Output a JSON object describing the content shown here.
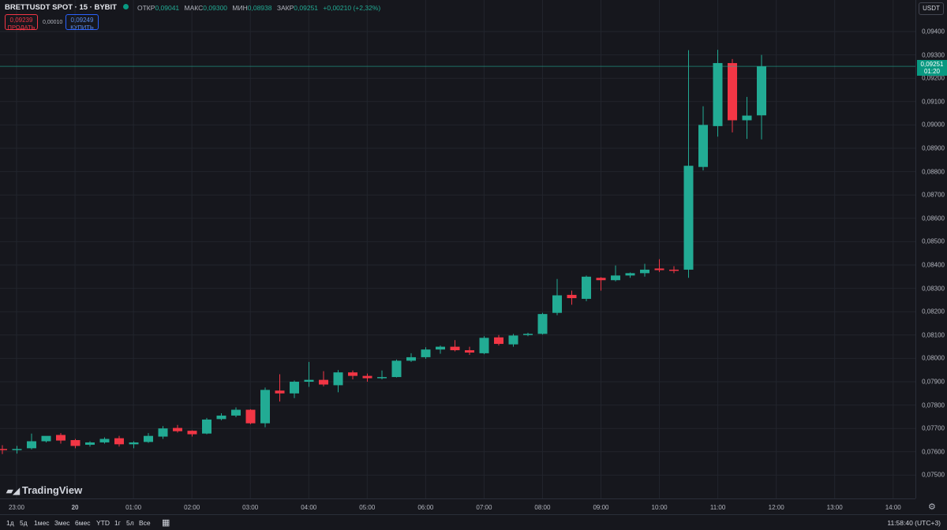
{
  "header": {
    "title": "BRETTUSDT SPOT · 15 · BYBIT",
    "ohlc": [
      {
        "label": "ОТКР",
        "value": "0,09041"
      },
      {
        "label": "МАКС",
        "value": "0,09300"
      },
      {
        "label": "МИН",
        "value": "0,08938"
      },
      {
        "label": "ЗАКР",
        "value": "0,09251"
      },
      {
        "label": "",
        "value": "+0,00210 (+2,32%)"
      }
    ]
  },
  "trade": {
    "sell_price": "0,09239",
    "sell_label": "ПРОДАТЬ",
    "spread": "0,00010",
    "buy_price": "0,09249",
    "buy_label": "КУПИТЬ"
  },
  "currency_button": "USDT",
  "current_price": {
    "price": "0,09251",
    "countdown": "01:20"
  },
  "branding": "TradingView",
  "bottom_bar": {
    "ranges": [
      "1д",
      "5д",
      "1мес",
      "3мес",
      "6мес",
      "YTD",
      "1г",
      "5л",
      "Все"
    ],
    "calendar_icon": "calendar-icon",
    "clock": "11:58:40 (UTC+3)"
  },
  "colors": {
    "up": "#22ab94",
    "down": "#f23645",
    "background": "#16171d",
    "grid": "#22252d"
  },
  "chart_data": {
    "type": "candlestick",
    "y_ticks": [
      "0,09400",
      "0,09300",
      "0,09200",
      "0,09100",
      "0,09000",
      "0,08900",
      "0,08800",
      "0,08700",
      "0,08600",
      "0,08500",
      "0,08400",
      "0,08300",
      "0,08200",
      "0,08100",
      "0,08000",
      "0,07900",
      "0,07800",
      "0,07700",
      "0,07600",
      "0,07500"
    ],
    "x_ticks": [
      "23:00",
      "20",
      "01:00",
      "02:00",
      "03:00",
      "04:00",
      "05:00",
      "06:00",
      "07:00",
      "08:00",
      "09:00",
      "10:00",
      "11:00",
      "12:00",
      "13:00",
      "14:00"
    ],
    "ylim": [
      0.0747,
      0.0948
    ],
    "grid": true,
    "candles": [
      {
        "o": 0.07612,
        "h": 0.07628,
        "l": 0.0759,
        "c": 0.07608
      },
      {
        "o": 0.0761,
        "h": 0.07625,
        "l": 0.07592,
        "c": 0.07612
      },
      {
        "o": 0.07615,
        "h": 0.07678,
        "l": 0.0761,
        "c": 0.07645
      },
      {
        "o": 0.07645,
        "h": 0.07665,
        "l": 0.0764,
        "c": 0.07668
      },
      {
        "o": 0.07672,
        "h": 0.0768,
        "l": 0.07635,
        "c": 0.07648
      },
      {
        "o": 0.0765,
        "h": 0.07655,
        "l": 0.07615,
        "c": 0.07625
      },
      {
        "o": 0.0763,
        "h": 0.07645,
        "l": 0.07622,
        "c": 0.0764
      },
      {
        "o": 0.0764,
        "h": 0.07662,
        "l": 0.07635,
        "c": 0.07655
      },
      {
        "o": 0.07658,
        "h": 0.07668,
        "l": 0.07622,
        "c": 0.07632
      },
      {
        "o": 0.07632,
        "h": 0.07645,
        "l": 0.07615,
        "c": 0.0764
      },
      {
        "o": 0.07642,
        "h": 0.0768,
        "l": 0.07638,
        "c": 0.07668
      },
      {
        "o": 0.07665,
        "h": 0.0771,
        "l": 0.07655,
        "c": 0.077
      },
      {
        "o": 0.07702,
        "h": 0.07715,
        "l": 0.07682,
        "c": 0.07688
      },
      {
        "o": 0.0769,
        "h": 0.07692,
        "l": 0.07665,
        "c": 0.07675
      },
      {
        "o": 0.07678,
        "h": 0.07745,
        "l": 0.07675,
        "c": 0.07738
      },
      {
        "o": 0.0774,
        "h": 0.07765,
        "l": 0.07735,
        "c": 0.07755
      },
      {
        "o": 0.07755,
        "h": 0.0779,
        "l": 0.07748,
        "c": 0.0778
      },
      {
        "o": 0.0778,
        "h": 0.07782,
        "l": 0.07718,
        "c": 0.07722
      },
      {
        "o": 0.07722,
        "h": 0.07875,
        "l": 0.07705,
        "c": 0.07865
      },
      {
        "o": 0.07862,
        "h": 0.07932,
        "l": 0.07815,
        "c": 0.0785
      },
      {
        "o": 0.0785,
        "h": 0.07905,
        "l": 0.0783,
        "c": 0.079
      },
      {
        "o": 0.079,
        "h": 0.07985,
        "l": 0.07878,
        "c": 0.07908
      },
      {
        "o": 0.07908,
        "h": 0.07945,
        "l": 0.0788,
        "c": 0.07888
      },
      {
        "o": 0.07885,
        "h": 0.0795,
        "l": 0.07855,
        "c": 0.0794
      },
      {
        "o": 0.0794,
        "h": 0.07948,
        "l": 0.0791,
        "c": 0.07925
      },
      {
        "o": 0.07925,
        "h": 0.07935,
        "l": 0.079,
        "c": 0.07915
      },
      {
        "o": 0.07915,
        "h": 0.07948,
        "l": 0.0791,
        "c": 0.0792
      },
      {
        "o": 0.0792,
        "h": 0.07995,
        "l": 0.07918,
        "c": 0.0799
      },
      {
        "o": 0.0799,
        "h": 0.08022,
        "l": 0.07985,
        "c": 0.08005
      },
      {
        "o": 0.08005,
        "h": 0.08048,
        "l": 0.07998,
        "c": 0.08038
      },
      {
        "o": 0.08038,
        "h": 0.08055,
        "l": 0.0802,
        "c": 0.0805
      },
      {
        "o": 0.0805,
        "h": 0.08078,
        "l": 0.0803,
        "c": 0.08035
      },
      {
        "o": 0.08035,
        "h": 0.0805,
        "l": 0.08015,
        "c": 0.08025
      },
      {
        "o": 0.08022,
        "h": 0.08095,
        "l": 0.08018,
        "c": 0.08088
      },
      {
        "o": 0.0809,
        "h": 0.081,
        "l": 0.08055,
        "c": 0.08062
      },
      {
        "o": 0.0806,
        "h": 0.08105,
        "l": 0.0805,
        "c": 0.08098
      },
      {
        "o": 0.081,
        "h": 0.0811,
        "l": 0.08095,
        "c": 0.08105
      },
      {
        "o": 0.08105,
        "h": 0.08195,
        "l": 0.08102,
        "c": 0.0819
      },
      {
        "o": 0.08195,
        "h": 0.0834,
        "l": 0.08185,
        "c": 0.0827
      },
      {
        "o": 0.08272,
        "h": 0.0829,
        "l": 0.0823,
        "c": 0.08258
      },
      {
        "o": 0.08255,
        "h": 0.08355,
        "l": 0.08245,
        "c": 0.0835
      },
      {
        "o": 0.08345,
        "h": 0.08348,
        "l": 0.0829,
        "c": 0.08335
      },
      {
        "o": 0.08335,
        "h": 0.08398,
        "l": 0.0833,
        "c": 0.08355
      },
      {
        "o": 0.08355,
        "h": 0.08368,
        "l": 0.08345,
        "c": 0.08365
      },
      {
        "o": 0.08365,
        "h": 0.08405,
        "l": 0.0835,
        "c": 0.0838
      },
      {
        "o": 0.08385,
        "h": 0.08425,
        "l": 0.0837,
        "c": 0.08378
      },
      {
        "o": 0.0838,
        "h": 0.08395,
        "l": 0.08365,
        "c": 0.08375
      },
      {
        "o": 0.0838,
        "h": 0.0932,
        "l": 0.08345,
        "c": 0.08825
      },
      {
        "o": 0.0882,
        "h": 0.0908,
        "l": 0.08805,
        "c": 0.09
      },
      {
        "o": 0.08995,
        "h": 0.09322,
        "l": 0.0895,
        "c": 0.09265
      },
      {
        "o": 0.09265,
        "h": 0.09282,
        "l": 0.08968,
        "c": 0.0902
      },
      {
        "o": 0.0902,
        "h": 0.0912,
        "l": 0.0894,
        "c": 0.0904
      },
      {
        "o": 0.09041,
        "h": 0.093,
        "l": 0.08938,
        "c": 0.09251
      }
    ]
  }
}
